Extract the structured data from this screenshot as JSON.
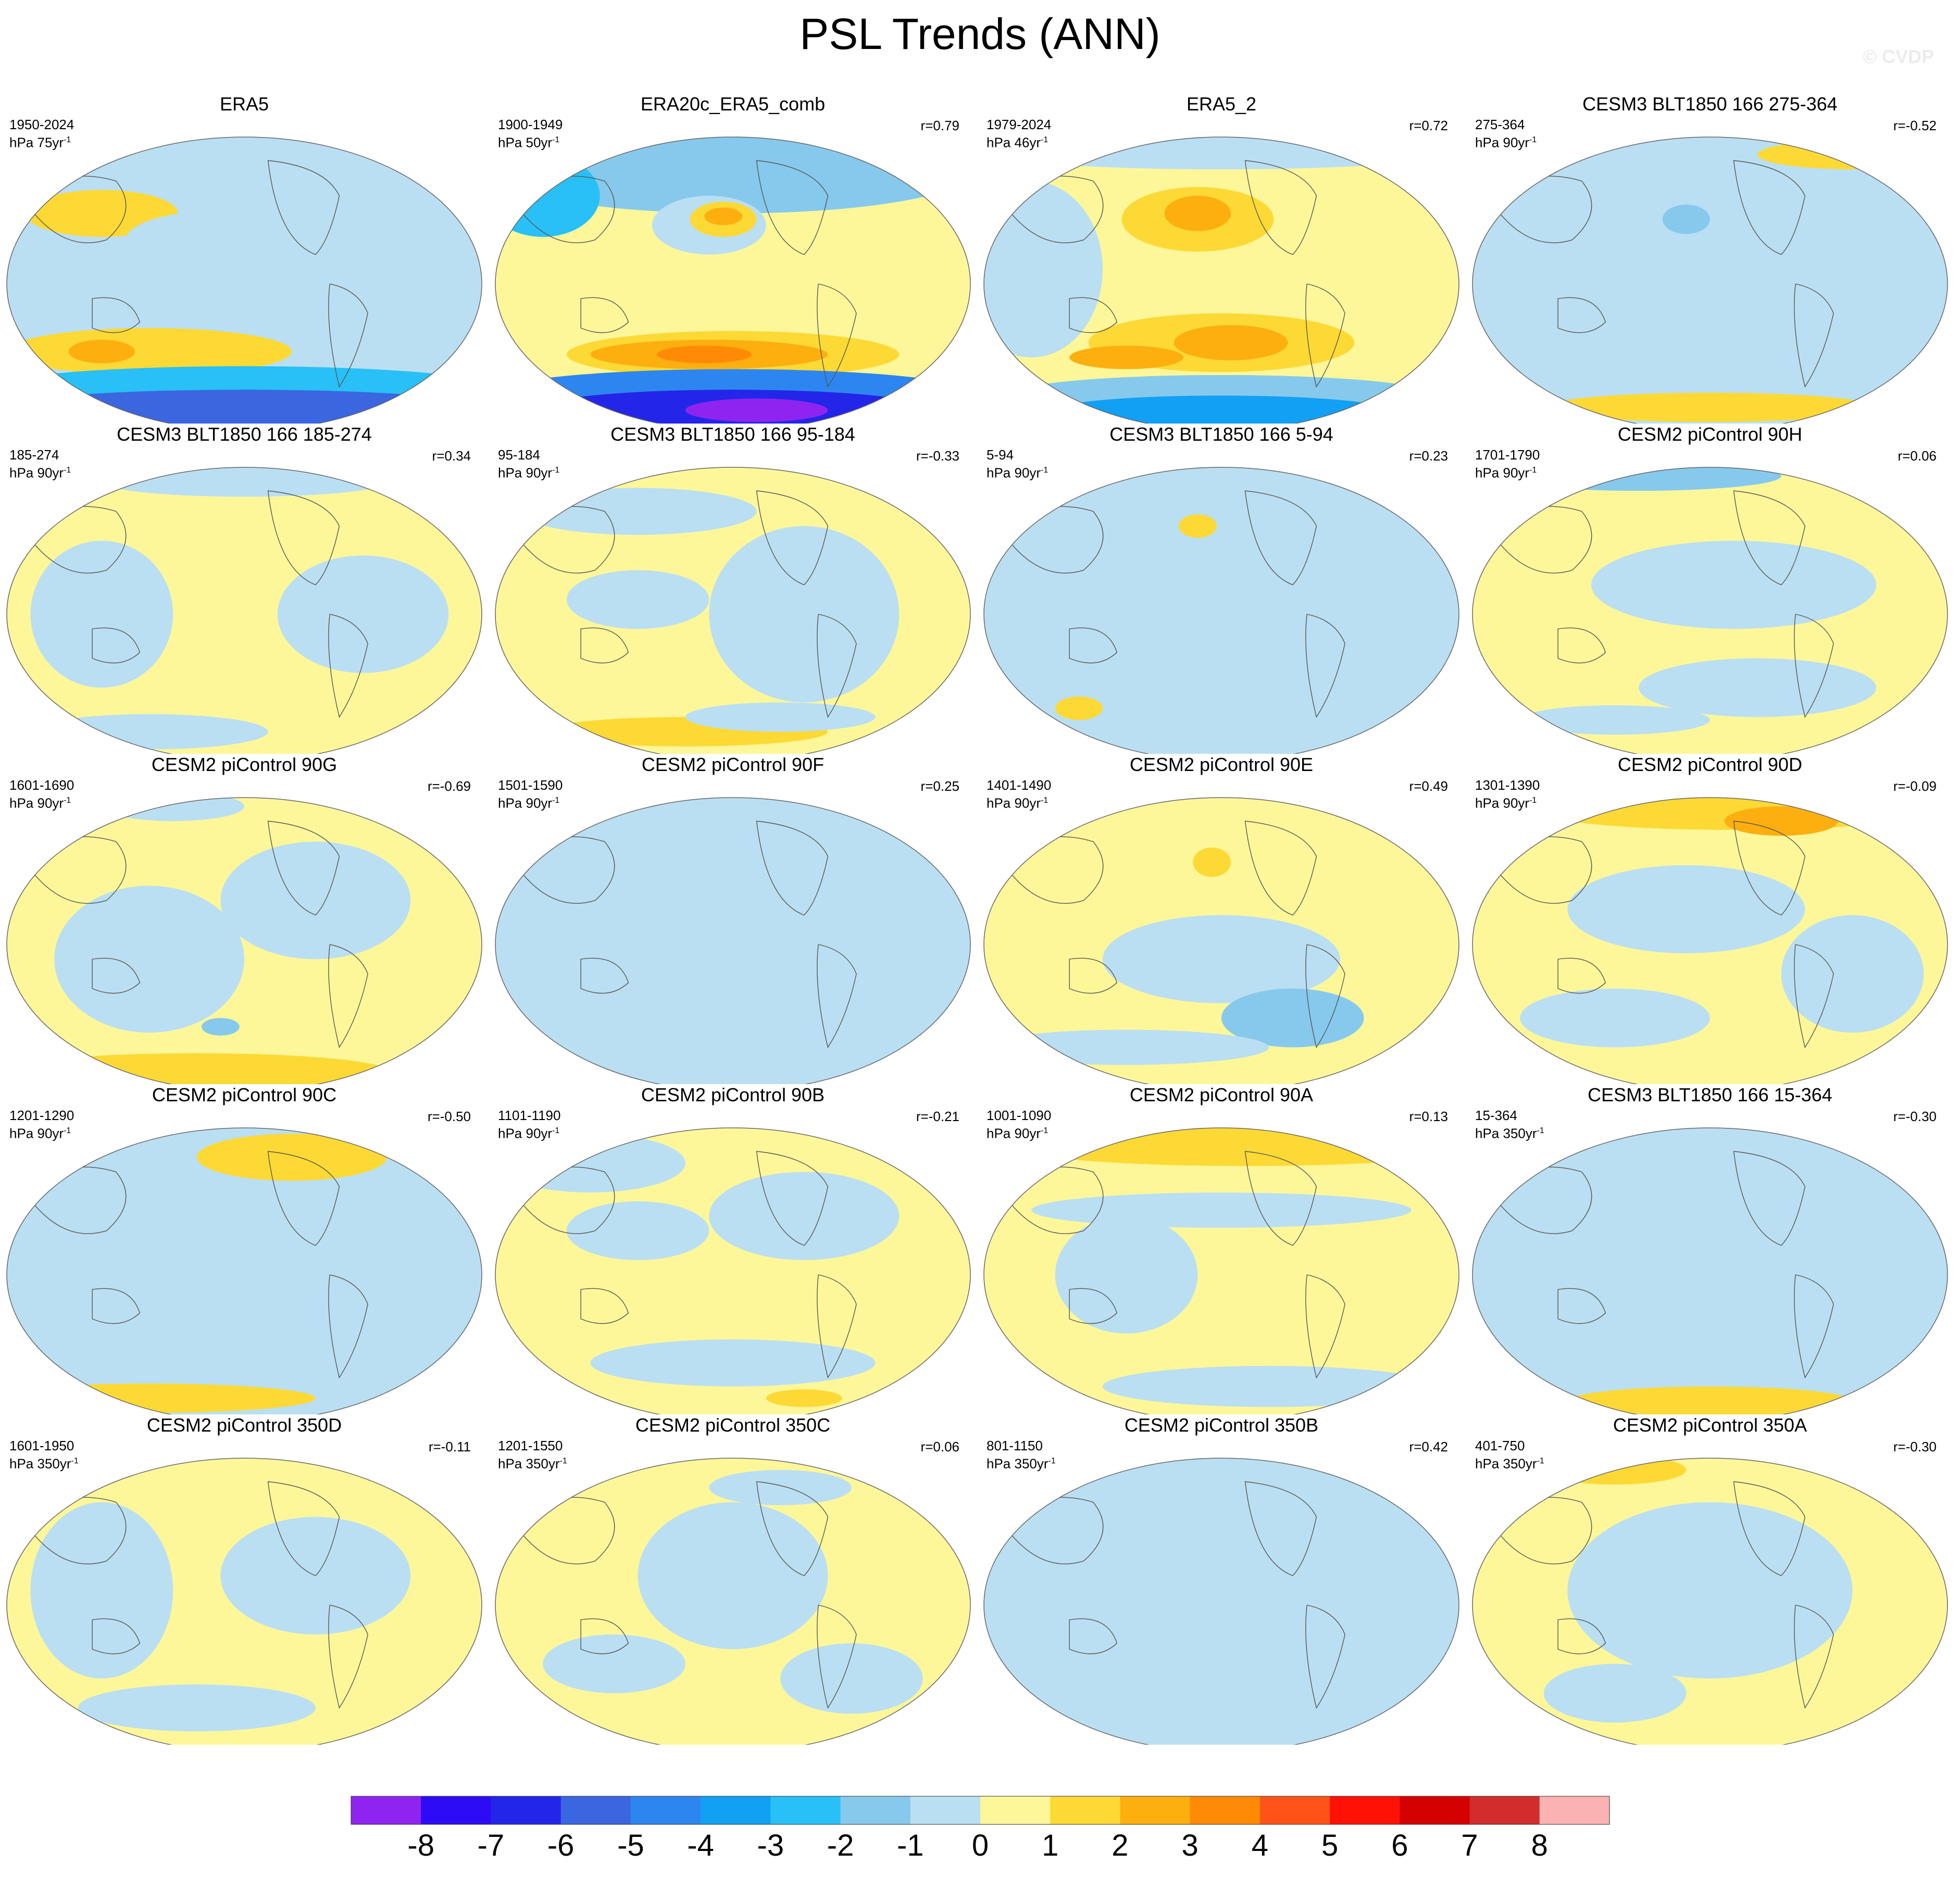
{
  "figure_title": "PSL Trends (ANN)",
  "watermark": "© CVDP",
  "chart_data": {
    "type": "heatmap",
    "title": "PSL Trends (ANN)",
    "variable": "PSL",
    "season": "ANN",
    "projection": "global map",
    "colorbar": {
      "ticks": [
        "-8",
        "-7",
        "-6",
        "-5",
        "-4",
        "-3",
        "-2",
        "-1",
        "0",
        "1",
        "2",
        "3",
        "4",
        "5",
        "6",
        "7",
        "8"
      ],
      "colors": [
        "#8f24f0",
        "#2d0cf5",
        "#2326e8",
        "#3a66e0",
        "#2d86f0",
        "#12a0f4",
        "#28c0f6",
        "#86c9ec",
        "#badff2",
        "#fdf79a",
        "#fdd935",
        "#fdaf0f",
        "#ff8a06",
        "#ff5317",
        "#ff1206",
        "#d50000",
        "#d32c2c",
        "#fbb2b2"
      ]
    },
    "panels": [
      {
        "title": "ERA5",
        "period": "1950-2024",
        "units": "hPa 75yr",
        "r": "",
        "pattern": 0
      },
      {
        "title": "ERA20c_ERA5_comb",
        "period": "1900-1949",
        "units": "hPa 50yr",
        "r": "r=0.79",
        "pattern": 1
      },
      {
        "title": "ERA5_2",
        "period": "1979-2024",
        "units": "hPa 46yr",
        "r": "r=0.72",
        "pattern": 2
      },
      {
        "title": "CESM3 BLT1850 166 275-364",
        "period": "275-364",
        "units": "hPa 90yr",
        "r": "r=-0.52",
        "pattern": 3
      },
      {
        "title": "CESM3 BLT1850 166 185-274",
        "period": "185-274",
        "units": "hPa 90yr",
        "r": "r=0.34",
        "pattern": 4
      },
      {
        "title": "CESM3 BLT1850 166 95-184",
        "period": "95-184",
        "units": "hPa 90yr",
        "r": "r=-0.33",
        "pattern": 5
      },
      {
        "title": "CESM3 BLT1850 166 5-94",
        "period": "5-94",
        "units": "hPa 90yr",
        "r": "r=0.23",
        "pattern": 6
      },
      {
        "title": "CESM2 piControl 90H",
        "period": "1701-1790",
        "units": "hPa 90yr",
        "r": "r=0.06",
        "pattern": 7
      },
      {
        "title": "CESM2 piControl 90G",
        "period": "1601-1690",
        "units": "hPa 90yr",
        "r": "r=-0.69",
        "pattern": 8
      },
      {
        "title": "CESM2 piControl 90F",
        "period": "1501-1590",
        "units": "hPa 90yr",
        "r": "r=0.25",
        "pattern": 9
      },
      {
        "title": "CESM2 piControl 90E",
        "period": "1401-1490",
        "units": "hPa 90yr",
        "r": "r=0.49",
        "pattern": 10
      },
      {
        "title": "CESM2 piControl 90D",
        "period": "1301-1390",
        "units": "hPa 90yr",
        "r": "r=-0.09",
        "pattern": 11
      },
      {
        "title": "CESM2 piControl 90C",
        "period": "1201-1290",
        "units": "hPa 90yr",
        "r": "r=-0.50",
        "pattern": 12
      },
      {
        "title": "CESM2 piControl 90B",
        "period": "1101-1190",
        "units": "hPa 90yr",
        "r": "r=-0.21",
        "pattern": 13
      },
      {
        "title": "CESM2 piControl 90A",
        "period": "1001-1090",
        "units": "hPa 90yr",
        "r": "r=0.13",
        "pattern": 14
      },
      {
        "title": "CESM3 BLT1850 166 15-364",
        "period": "15-364",
        "units": "hPa 350yr",
        "r": "r=-0.30",
        "pattern": 15
      },
      {
        "title": "CESM2 piControl 350D",
        "period": "1601-1950",
        "units": "hPa 350yr",
        "r": "r=-0.11",
        "pattern": 16
      },
      {
        "title": "CESM2 piControl 350C",
        "period": "1201-1550",
        "units": "hPa 350yr",
        "r": "r=0.06",
        "pattern": 17
      },
      {
        "title": "CESM2 piControl 350B",
        "period": "801-1150",
        "units": "hPa 350yr",
        "r": "r=0.42",
        "pattern": 18
      },
      {
        "title": "CESM2 piControl 350A",
        "period": "401-750",
        "units": "hPa 350yr",
        "r": "r=-0.30",
        "pattern": 19
      }
    ]
  }
}
